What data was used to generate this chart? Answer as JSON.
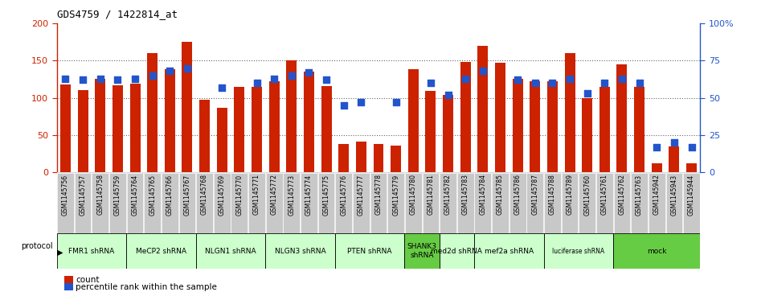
{
  "title": "GDS4759 / 1422814_at",
  "samples": [
    "GSM1145756",
    "GSM1145757",
    "GSM1145758",
    "GSM1145759",
    "GSM1145764",
    "GSM1145765",
    "GSM1145766",
    "GSM1145767",
    "GSM1145768",
    "GSM1145769",
    "GSM1145770",
    "GSM1145771",
    "GSM1145772",
    "GSM1145773",
    "GSM1145774",
    "GSM1145775",
    "GSM1145776",
    "GSM1145777",
    "GSM1145778",
    "GSM1145779",
    "GSM1145780",
    "GSM1145781",
    "GSM1145782",
    "GSM1145783",
    "GSM1145784",
    "GSM1145785",
    "GSM1145786",
    "GSM1145787",
    "GSM1145788",
    "GSM1145789",
    "GSM1145760",
    "GSM1145761",
    "GSM1145762",
    "GSM1145763",
    "GSM1145942",
    "GSM1145943",
    "GSM1145944"
  ],
  "bar_values": [
    118,
    110,
    126,
    117,
    119,
    160,
    138,
    175,
    97,
    87,
    115,
    115,
    122,
    150,
    135,
    116,
    38,
    41,
    38,
    36,
    139,
    109,
    104,
    148,
    170,
    147,
    126,
    122,
    122,
    160,
    100,
    115,
    145,
    115,
    12,
    35,
    12
  ],
  "dot_values": [
    63,
    62,
    63,
    62,
    63,
    65,
    68,
    70,
    null,
    57,
    null,
    60,
    63,
    65,
    67,
    62,
    45,
    47,
    null,
    47,
    null,
    60,
    52,
    63,
    68,
    null,
    62,
    60,
    60,
    63,
    53,
    60,
    63,
    60,
    17,
    20,
    17
  ],
  "bar_color": "#cc2200",
  "dot_color": "#2255cc",
  "ylim_left": [
    0,
    200
  ],
  "ylim_right": [
    0,
    100
  ],
  "yticks_left": [
    0,
    50,
    100,
    150,
    200
  ],
  "yticks_right": [
    0,
    25,
    50,
    75,
    100
  ],
  "ytick_labels_left": [
    "0",
    "50",
    "100",
    "150",
    "200"
  ],
  "ytick_labels_right": [
    "0",
    "25",
    "50",
    "75",
    "100%"
  ],
  "groups": [
    {
      "label": "FMR1 shRNA",
      "start": 0,
      "end": 4,
      "color": "#ccffcc"
    },
    {
      "label": "MeCP2 shRNA",
      "start": 4,
      "end": 8,
      "color": "#ccffcc"
    },
    {
      "label": "NLGN1 shRNA",
      "start": 8,
      "end": 12,
      "color": "#ccffcc"
    },
    {
      "label": "NLGN3 shRNA",
      "start": 12,
      "end": 16,
      "color": "#ccffcc"
    },
    {
      "label": "PTEN shRNA",
      "start": 16,
      "end": 20,
      "color": "#ccffcc"
    },
    {
      "label": "SHANK3\nshRNA",
      "start": 20,
      "end": 22,
      "color": "#66cc44"
    },
    {
      "label": "med2d shRNA",
      "start": 22,
      "end": 24,
      "color": "#ccffcc"
    },
    {
      "label": "mef2a shRNA",
      "start": 24,
      "end": 28,
      "color": "#ccffcc"
    },
    {
      "label": "luciferase shRNA",
      "start": 28,
      "end": 32,
      "color": "#ccffcc"
    },
    {
      "label": "mock",
      "start": 32,
      "end": 37,
      "color": "#66cc44"
    }
  ],
  "bar_width": 0.6,
  "dot_marker_size": 40,
  "left_yaxis_color": "#cc2200",
  "right_yaxis_color": "#2255cc",
  "protocol_label": "protocol",
  "legend_count": "count",
  "legend_percentile": "percentile rank within the sample"
}
